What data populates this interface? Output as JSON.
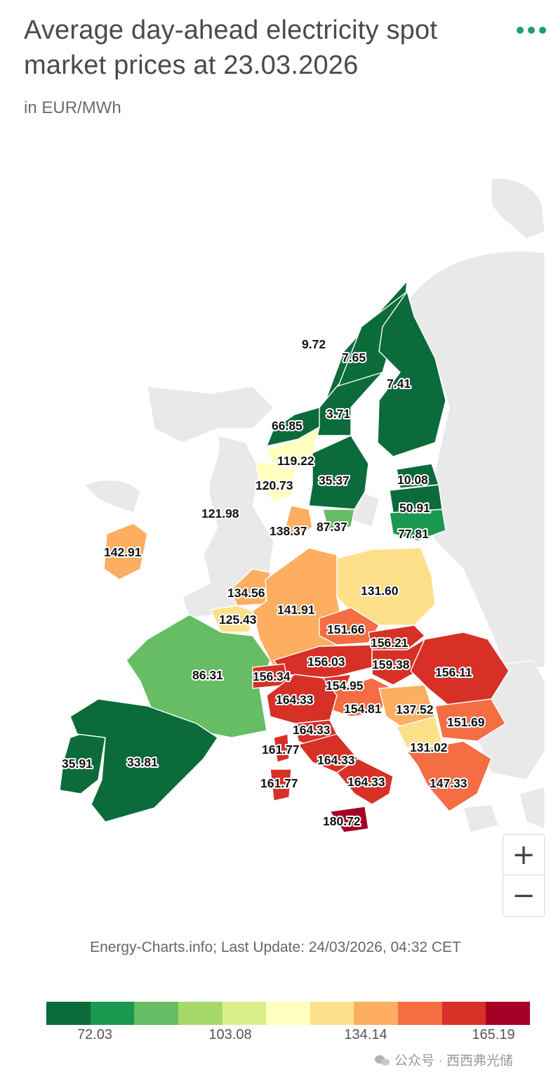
{
  "title": "Average day-ahead electricity spot market prices at 23.03.2026",
  "subtitle": "in EUR/MWh",
  "credit": "Energy-Charts.info; Last Update: 24/03/2026, 04:32 CET",
  "watermark": "公众号 · 西西弗光储",
  "zoom": {
    "in_label": "+",
    "out_label": "−"
  },
  "legend": {
    "colors": [
      "#0b6b3a",
      "#1a9850",
      "#66bd63",
      "#a6d96a",
      "#d9ef8b",
      "#ffffbf",
      "#fee08b",
      "#fdae61",
      "#f46d43",
      "#d73027",
      "#a50026"
    ],
    "labels": [
      "72.03",
      "103.08",
      "134.14",
      "165.19"
    ]
  },
  "regions": [
    {
      "id": "no4",
      "label": "9.72",
      "color": "#0b6b3a"
    },
    {
      "id": "se1",
      "label": "7.65",
      "color": "#0b6b3a"
    },
    {
      "id": "fi",
      "label": "7.41",
      "color": "#0b6b3a"
    },
    {
      "id": "se2",
      "label": "3.71",
      "color": "#0b6b3a"
    },
    {
      "id": "no3",
      "label": "66.85",
      "color": "#0b6b3a"
    },
    {
      "id": "no1",
      "label": "119.22",
      "color": "#ffffbf"
    },
    {
      "id": "no2",
      "label": "120.73",
      "color": "#ffffbf"
    },
    {
      "id": "se3",
      "label": "35.37",
      "color": "#0b6b3a"
    },
    {
      "id": "ee",
      "label": "10.08",
      "color": "#0b6b3a"
    },
    {
      "id": "lv",
      "label": "50.91",
      "color": "#0b6b3a"
    },
    {
      "id": "lt",
      "label": "77.81",
      "color": "#1a9850"
    },
    {
      "id": "gb",
      "label": "121.98",
      "color": "#e9e9e9"
    },
    {
      "id": "dk1",
      "label": "138.37",
      "color": "#fdae61"
    },
    {
      "id": "se4",
      "label": "87.37",
      "color": "#66bd63"
    },
    {
      "id": "ie",
      "label": "142.91",
      "color": "#fdae61"
    },
    {
      "id": "pl",
      "label": "131.60",
      "color": "#fee08b"
    },
    {
      "id": "nl",
      "label": "134.56",
      "color": "#fdae61"
    },
    {
      "id": "de",
      "label": "141.91",
      "color": "#fdae61"
    },
    {
      "id": "be",
      "label": "125.43",
      "color": "#fee08b"
    },
    {
      "id": "cz",
      "label": "151.66",
      "color": "#f46d43"
    },
    {
      "id": "sk",
      "label": "156.21",
      "color": "#d73027"
    },
    {
      "id": "at",
      "label": "156.03",
      "color": "#d73027"
    },
    {
      "id": "hu",
      "label": "159.38",
      "color": "#d73027"
    },
    {
      "id": "ro",
      "label": "156.11",
      "color": "#d73027"
    },
    {
      "id": "fr",
      "label": "86.31",
      "color": "#66bd63"
    },
    {
      "id": "ch",
      "label": "156.34",
      "color": "#d73027"
    },
    {
      "id": "si",
      "label": "154.95",
      "color": "#d73027"
    },
    {
      "id": "it-n",
      "label": "164.33",
      "color": "#d73027"
    },
    {
      "id": "hr",
      "label": "154.81",
      "color": "#f46d43"
    },
    {
      "id": "rs",
      "label": "137.52",
      "color": "#fdae61"
    },
    {
      "id": "bg",
      "label": "151.69",
      "color": "#f46d43"
    },
    {
      "id": "it-cn",
      "label": "164.33",
      "color": "#d73027"
    },
    {
      "id": "it-cors",
      "label": "161.77",
      "color": "#d73027"
    },
    {
      "id": "it-cs",
      "label": "164.33",
      "color": "#d73027"
    },
    {
      "id": "mk",
      "label": "131.02",
      "color": "#fee08b"
    },
    {
      "id": "it-sard",
      "label": "161.77",
      "color": "#d73027"
    },
    {
      "id": "it-s",
      "label": "164.33",
      "color": "#d73027"
    },
    {
      "id": "gr",
      "label": "147.33",
      "color": "#f46d43"
    },
    {
      "id": "pt",
      "label": "35.91",
      "color": "#0b6b3a"
    },
    {
      "id": "es",
      "label": "33.81",
      "color": "#0b6b3a"
    },
    {
      "id": "it-sicily",
      "label": "180.72",
      "color": "#a50026"
    }
  ]
}
